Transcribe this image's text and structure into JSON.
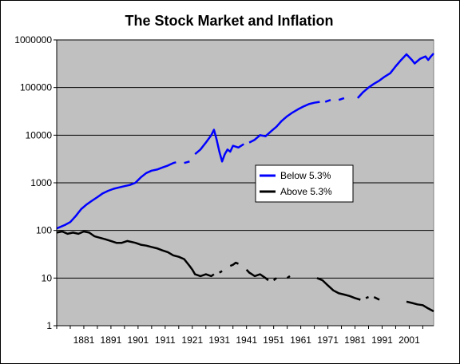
{
  "chart_data": {
    "type": "line",
    "title": "The Stock Market and Inflation",
    "xlabel": "",
    "ylabel": "",
    "y_scale": "log",
    "ylim": [
      1,
      1000000
    ],
    "xlim": [
      1871,
      2010
    ],
    "y_ticks": [
      "1",
      "10",
      "100",
      "1000",
      "10000",
      "100000",
      "1000000"
    ],
    "x_ticks": [
      "1881",
      "1891",
      "1901",
      "1911",
      "1921",
      "1931",
      "1941",
      "1951",
      "1961",
      "1971",
      "1981",
      "1991",
      "2001"
    ],
    "grid": true,
    "plot_background": "#c0c0c0",
    "legend_placement": "center-right",
    "series": [
      {
        "name": "Below 5.3%",
        "color": "#0000ff",
        "segments": [
          [
            [
              1871,
              110
            ],
            [
              1874,
              130
            ],
            [
              1876,
              150
            ],
            [
              1878,
              200
            ],
            [
              1880,
              280
            ],
            [
              1882,
              350
            ],
            [
              1884,
              420
            ],
            [
              1886,
              500
            ],
            [
              1888,
              600
            ],
            [
              1890,
              680
            ],
            [
              1892,
              750
            ],
            [
              1894,
              800
            ],
            [
              1896,
              850
            ],
            [
              1898,
              900
            ],
            [
              1900,
              1000
            ],
            [
              1902,
              1300
            ],
            [
              1904,
              1600
            ],
            [
              1906,
              1800
            ],
            [
              1908,
              1900
            ],
            [
              1910,
              2100
            ],
            [
              1912,
              2300
            ],
            [
              1914,
              2600
            ],
            [
              1915,
              2700
            ]
          ],
          [
            [
              1918,
              2600
            ],
            [
              1920,
              2800
            ]
          ],
          [
            [
              1922,
              4000
            ],
            [
              1924,
              5000
            ],
            [
              1926,
              7000
            ],
            [
              1928,
              10000
            ],
            [
              1929,
              13000
            ],
            [
              1930,
              8000
            ],
            [
              1931,
              4500
            ],
            [
              1932,
              2800
            ],
            [
              1933,
              4000
            ],
            [
              1934,
              5000
            ],
            [
              1935,
              4500
            ],
            [
              1936,
              6000
            ],
            [
              1938,
              5500
            ],
            [
              1940,
              6500
            ]
          ],
          [
            [
              1942,
              7000
            ],
            [
              1944,
              8000
            ],
            [
              1946,
              10000
            ],
            [
              1948,
              9500
            ],
            [
              1950,
              12000
            ],
            [
              1952,
              15000
            ],
            [
              1954,
              20000
            ],
            [
              1956,
              25000
            ],
            [
              1958,
              30000
            ],
            [
              1960,
              35000
            ],
            [
              1962,
              40000
            ],
            [
              1964,
              45000
            ],
            [
              1966,
              48000
            ],
            [
              1968,
              50000
            ]
          ],
          [
            [
              1970,
              50000
            ],
            [
              1972,
              55000
            ]
          ],
          [
            [
              1975,
              55000
            ],
            [
              1977,
              60000
            ]
          ],
          [
            [
              1982,
              60000
            ],
            [
              1984,
              80000
            ],
            [
              1986,
              100000
            ],
            [
              1988,
              120000
            ],
            [
              1990,
              140000
            ],
            [
              1992,
              170000
            ],
            [
              1994,
              200000
            ],
            [
              1996,
              280000
            ],
            [
              1998,
              380000
            ],
            [
              2000,
              500000
            ],
            [
              2002,
              380000
            ],
            [
              2003,
              320000
            ],
            [
              2005,
              400000
            ],
            [
              2007,
              450000
            ],
            [
              2008,
              380000
            ],
            [
              2009,
              450000
            ],
            [
              2010,
              520000
            ]
          ]
        ]
      },
      {
        "name": "Above 5.3%",
        "color": "#000000",
        "segments": [
          [
            [
              1871,
              90
            ],
            [
              1873,
              95
            ],
            [
              1875,
              85
            ],
            [
              1877,
              90
            ],
            [
              1879,
              85
            ],
            [
              1881,
              95
            ],
            [
              1883,
              90
            ],
            [
              1885,
              75
            ],
            [
              1887,
              70
            ],
            [
              1889,
              65
            ],
            [
              1891,
              60
            ],
            [
              1893,
              55
            ],
            [
              1895,
              55
            ],
            [
              1897,
              60
            ],
            [
              1900,
              55
            ],
            [
              1902,
              50
            ],
            [
              1904,
              48
            ],
            [
              1906,
              45
            ],
            [
              1908,
              42
            ],
            [
              1910,
              38
            ],
            [
              1912,
              35
            ],
            [
              1914,
              30
            ],
            [
              1916,
              28
            ],
            [
              1918,
              25
            ],
            [
              1920,
              18
            ],
            [
              1921,
              15
            ],
            [
              1922,
              12
            ],
            [
              1924,
              11
            ],
            [
              1926,
              12
            ],
            [
              1928,
              11
            ],
            [
              1929,
              12
            ]
          ],
          [
            [
              1931,
              13
            ],
            [
              1932,
              14
            ]
          ],
          [
            [
              1935,
              18
            ],
            [
              1936,
              19
            ],
            [
              1937,
              21
            ],
            [
              1938,
              20
            ]
          ],
          [
            [
              1941,
              15
            ],
            [
              1942,
              13
            ],
            [
              1943,
              12
            ],
            [
              1944,
              11
            ],
            [
              1946,
              12
            ],
            [
              1948,
              10
            ],
            [
              1949,
              9
            ]
          ],
          [
            [
              1951,
              9
            ],
            [
              1952,
              10
            ]
          ],
          [
            [
              1956,
              10
            ],
            [
              1957,
              11
            ]
          ],
          [
            [
              1967,
              10
            ],
            [
              1969,
              9
            ],
            [
              1971,
              7
            ],
            [
              1973,
              5.5
            ],
            [
              1975,
              4.8
            ],
            [
              1977,
              4.5
            ],
            [
              1979,
              4.2
            ],
            [
              1981,
              3.8
            ],
            [
              1983,
              3.5
            ]
          ],
          [
            [
              1985,
              3.8
            ],
            [
              1986,
              4
            ]
          ],
          [
            [
              1988,
              4
            ],
            [
              1990,
              3.5
            ]
          ],
          [
            [
              2000,
              3.2
            ],
            [
              2002,
              3
            ],
            [
              2004,
              2.8
            ],
            [
              2006,
              2.7
            ],
            [
              2008,
              2.3
            ],
            [
              2010,
              2
            ]
          ]
        ]
      }
    ]
  }
}
